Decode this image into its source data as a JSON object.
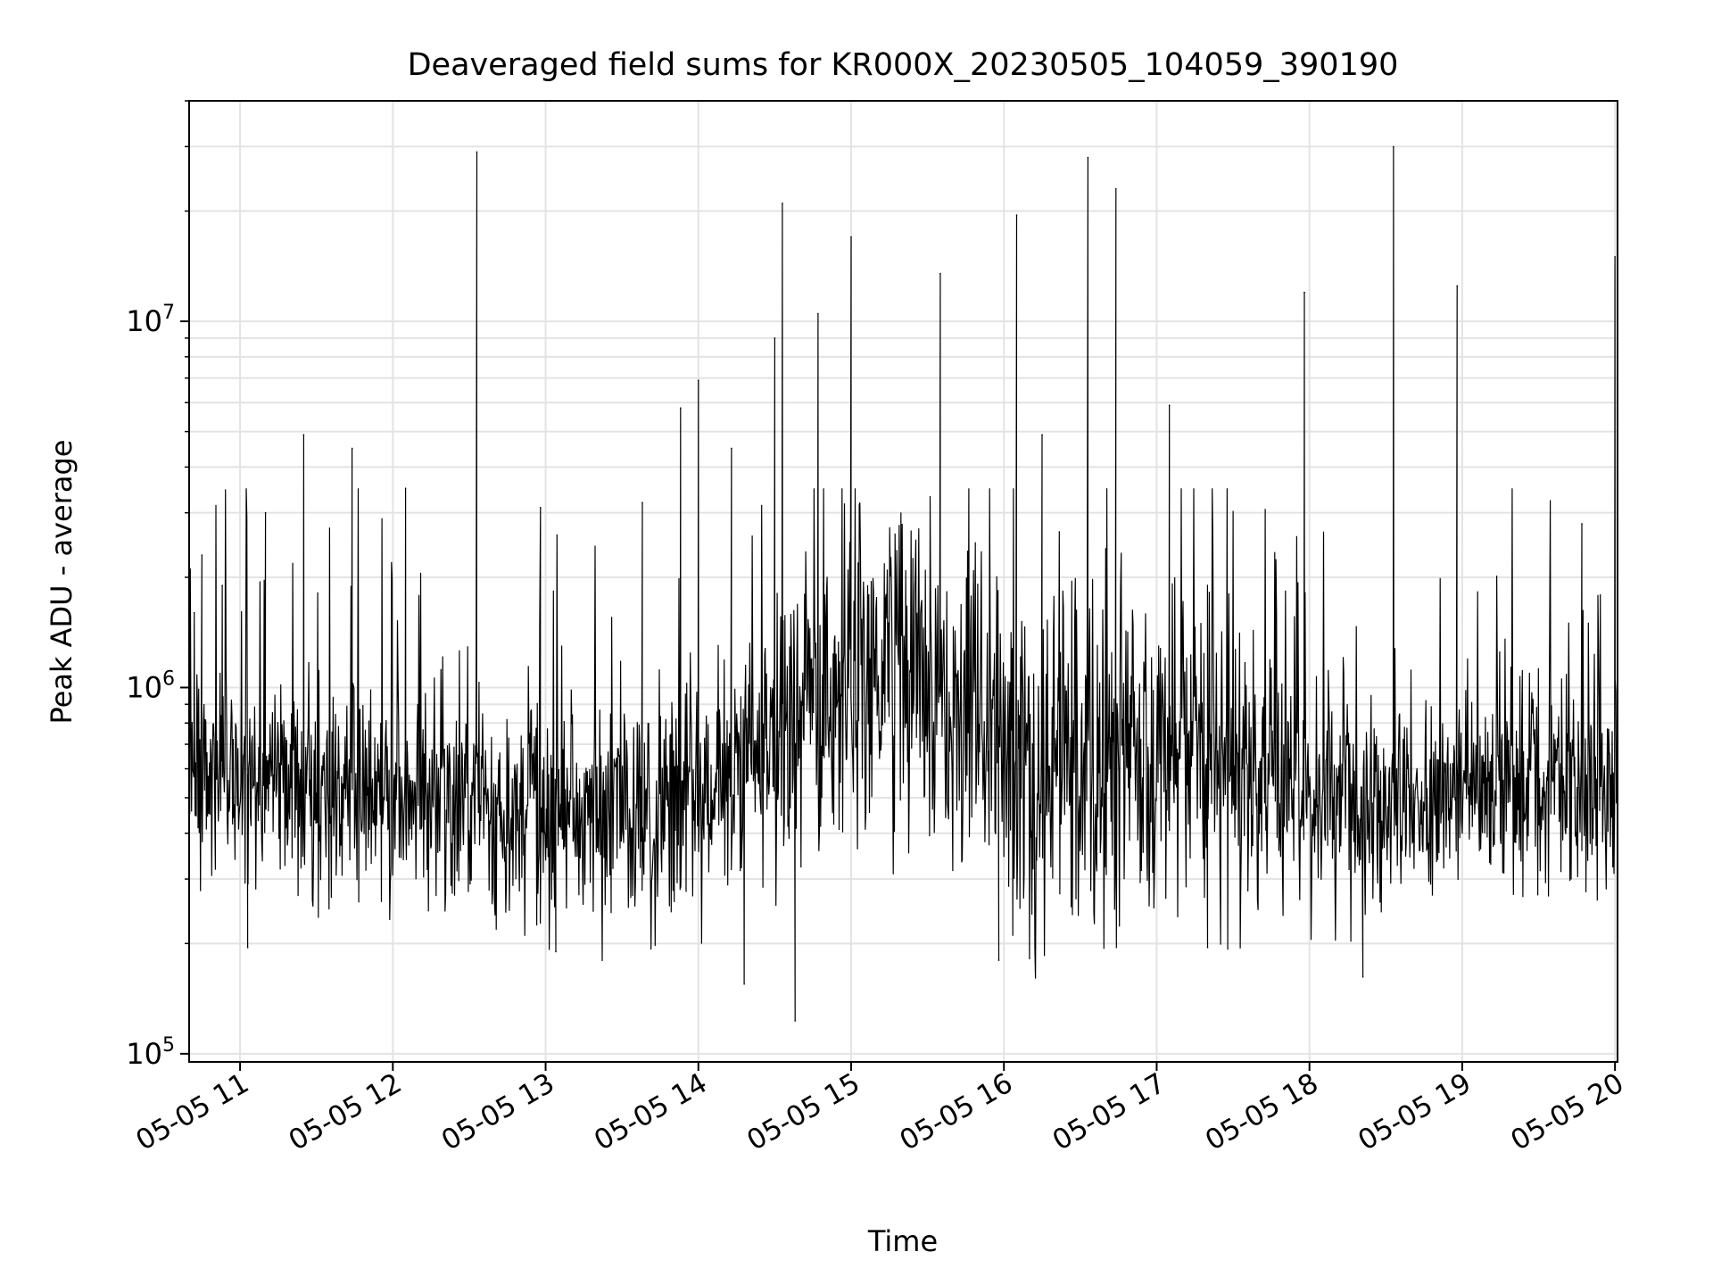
{
  "chart_data": {
    "type": "line",
    "title": "Deaveraged field sums for KR000X_20230505_104059_390190",
    "xlabel": "Time",
    "ylabel": "Peak ADU - average",
    "y_scale": "log",
    "ylim": [
      95000,
      40000000
    ],
    "xlim": [
      "2023-05-05 10:40",
      "2023-05-05 20:01"
    ],
    "x_ticks": [
      "05-05 11",
      "05-05 12",
      "05-05 13",
      "05-05 14",
      "05-05 15",
      "05-05 16",
      "05-05 17",
      "05-05 18",
      "05-05 19",
      "05-05 20"
    ],
    "y_ticks": [
      {
        "value": 100000,
        "base": "10",
        "exp": "5"
      },
      {
        "value": 1000000,
        "base": "10",
        "exp": "6"
      },
      {
        "value": 10000000,
        "base": "10",
        "exp": "7"
      }
    ],
    "grid": true,
    "line_color": "#000000",
    "series": [
      {
        "values": [
          {
            "x": "2023-05-05 10:42",
            "y": 1600000
          },
          {
            "x": "2023-05-05 10:45",
            "y": 2300000
          },
          {
            "x": "2023-05-05 10:53",
            "y": 1900000
          },
          {
            "x": "2023-05-05 11:03",
            "y": 195000
          },
          {
            "x": "2023-05-05 11:10",
            "y": 3000000
          },
          {
            "x": "2023-05-05 11:25",
            "y": 4900000
          },
          {
            "x": "2023-05-05 11:44",
            "y": 4500000
          },
          {
            "x": "2023-05-05 12:05",
            "y": 3500000
          },
          {
            "x": "2023-05-05 12:33",
            "y": 29000000
          },
          {
            "x": "2023-05-05 12:58",
            "y": 3100000
          },
          {
            "x": "2023-05-05 13:04",
            "y": 190000
          },
          {
            "x": "2023-05-05 13:38",
            "y": 3200000
          },
          {
            "x": "2023-05-05 13:53",
            "y": 5800000
          },
          {
            "x": "2023-05-05 14:00",
            "y": 6900000
          },
          {
            "x": "2023-05-05 14:13",
            "y": 4500000
          },
          {
            "x": "2023-05-05 14:18",
            "y": 155000
          },
          {
            "x": "2023-05-05 14:30",
            "y": 9000000
          },
          {
            "x": "2023-05-05 14:33",
            "y": 21000000
          },
          {
            "x": "2023-05-05 14:38",
            "y": 123000
          },
          {
            "x": "2023-05-05 14:47",
            "y": 10500000
          },
          {
            "x": "2023-05-05 15:00",
            "y": 17000000
          },
          {
            "x": "2023-05-05 15:35",
            "y": 13500000
          },
          {
            "x": "2023-05-05 15:58",
            "y": 180000
          },
          {
            "x": "2023-05-05 16:05",
            "y": 19500000
          },
          {
            "x": "2023-05-05 16:15",
            "y": 4900000
          },
          {
            "x": "2023-05-05 16:33",
            "y": 28000000
          },
          {
            "x": "2023-05-05 16:44",
            "y": 23000000
          },
          {
            "x": "2023-05-05 17:05",
            "y": 5900000
          },
          {
            "x": "2023-05-05 17:20",
            "y": 195000
          },
          {
            "x": "2023-05-05 17:40",
            "y": 600000
          },
          {
            "x": "2023-05-05 17:58",
            "y": 12000000
          },
          {
            "x": "2023-05-05 18:21",
            "y": 162000
          },
          {
            "x": "2023-05-05 18:33",
            "y": 30000000
          },
          {
            "x": "2023-05-05 18:58",
            "y": 12500000
          },
          {
            "x": "2023-05-05 19:47",
            "y": 2800000
          },
          {
            "x": "2023-05-05 20:00",
            "y": 15000000
          }
        ]
      }
    ]
  }
}
